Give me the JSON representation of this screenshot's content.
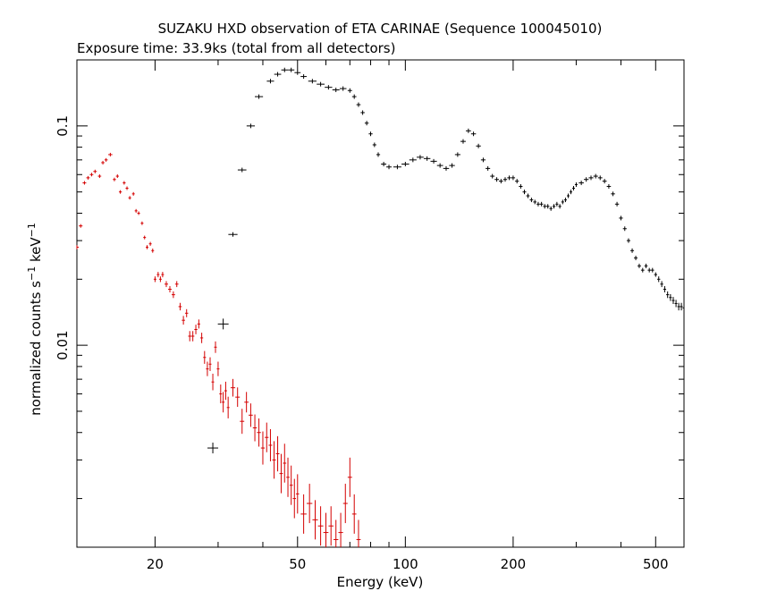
{
  "chart_data": {
    "type": "scatter",
    "title": "SUZAKU HXD observation of ETA CARINAE (Sequence 100045010)",
    "subtitle": "Exposure time: 33.9ks (total from all detectors)",
    "xlabel": "Energy (keV)",
    "ylabel_main": "normalized counts s",
    "ylabel_sup1": "−1",
    "ylabel_mid": " keV",
    "ylabel_sup2": "−1",
    "x_scale": "log",
    "y_scale": "log",
    "xlim": [
      12.1,
      600
    ],
    "ylim": [
      0.0012,
      0.2
    ],
    "x_ticks": [
      {
        "value": 20,
        "label": "20"
      },
      {
        "value": 50,
        "label": "50"
      },
      {
        "value": 100,
        "label": "100"
      },
      {
        "value": 200,
        "label": "200"
      },
      {
        "value": 500,
        "label": "500"
      }
    ],
    "y_ticks": [
      {
        "value": 0.1,
        "label": "0.1"
      },
      {
        "value": 0.01,
        "label": "0.01"
      }
    ],
    "grid": false,
    "series": [
      {
        "color": "#d40000",
        "points": [
          [
            12.1,
            0.028
          ],
          [
            12.4,
            0.035
          ],
          [
            12.7,
            0.055
          ],
          [
            13.0,
            0.058
          ],
          [
            13.3,
            0.06
          ],
          [
            13.6,
            0.062
          ],
          [
            14.0,
            0.059
          ],
          [
            14.3,
            0.068
          ],
          [
            14.6,
            0.07
          ],
          [
            15.0,
            0.074
          ],
          [
            15.4,
            0.057
          ],
          [
            15.7,
            0.059
          ],
          [
            16.0,
            0.05
          ],
          [
            16.4,
            0.055
          ],
          [
            16.7,
            0.052
          ],
          [
            17.0,
            0.047
          ],
          [
            17.4,
            0.049
          ],
          [
            17.7,
            0.041
          ],
          [
            18.0,
            0.04
          ],
          [
            18.4,
            0.036
          ],
          [
            18.7,
            0.031
          ],
          [
            19.0,
            0.028
          ],
          [
            19.4,
            0.029
          ],
          [
            19.7,
            0.027
          ],
          [
            20.0,
            0.02
          ],
          [
            20.4,
            0.021
          ],
          [
            20.7,
            0.02
          ],
          [
            21.0,
            0.021
          ],
          [
            21.5,
            0.019
          ],
          [
            22.0,
            0.018
          ],
          [
            22.5,
            0.017
          ],
          [
            23.0,
            0.019
          ],
          [
            23.5,
            0.015
          ],
          [
            24.0,
            0.013
          ],
          [
            24.5,
            0.014
          ],
          [
            25.0,
            0.011
          ],
          [
            25.5,
            0.011
          ],
          [
            26.0,
            0.0118
          ],
          [
            26.5,
            0.0125
          ],
          [
            27.0,
            0.0108
          ],
          [
            27.5,
            0.0088
          ],
          [
            28.0,
            0.0078
          ],
          [
            28.5,
            0.0082
          ],
          [
            29.0,
            0.0068
          ],
          [
            29.5,
            0.0098
          ],
          [
            30.0,
            0.0078
          ],
          [
            30.5,
            0.006
          ],
          [
            31.0,
            0.0055
          ],
          [
            31.5,
            0.0062
          ],
          [
            32.0,
            0.0052
          ],
          [
            33.0,
            0.0064
          ],
          [
            34.0,
            0.0058
          ],
          [
            35.0,
            0.0045
          ],
          [
            36.0,
            0.0055
          ],
          [
            37.0,
            0.0048
          ],
          [
            38.0,
            0.0042
          ],
          [
            39.0,
            0.004
          ],
          [
            40.0,
            0.0034
          ],
          [
            41.0,
            0.0038
          ],
          [
            42.0,
            0.0035
          ],
          [
            43.0,
            0.003
          ],
          [
            44.0,
            0.0032
          ],
          [
            45.0,
            0.0026
          ],
          [
            46.0,
            0.0029
          ],
          [
            47.0,
            0.0025
          ],
          [
            48.0,
            0.0023
          ],
          [
            49.0,
            0.002
          ],
          [
            50.0,
            0.0021
          ],
          [
            52.0,
            0.0017
          ],
          [
            54.0,
            0.0019
          ],
          [
            56.0,
            0.0016
          ],
          [
            58.0,
            0.0015
          ],
          [
            60.0,
            0.0014
          ],
          [
            62.0,
            0.0015
          ],
          [
            64.0,
            0.0013
          ],
          [
            66.0,
            0.0014
          ],
          [
            68.0,
            0.0019
          ],
          [
            70.0,
            0.0025
          ],
          [
            72.0,
            0.0017
          ],
          [
            74.0,
            0.0013
          ]
        ]
      },
      {
        "color": "#000000",
        "points": [
          [
            29,
            0.0034
          ],
          [
            31,
            0.0125
          ],
          [
            33,
            0.032
          ],
          [
            35,
            0.063
          ],
          [
            37,
            0.1
          ],
          [
            39,
            0.136
          ],
          [
            42,
            0.16
          ],
          [
            44,
            0.172
          ],
          [
            46,
            0.18
          ],
          [
            48,
            0.18
          ],
          [
            50,
            0.175
          ],
          [
            52,
            0.168
          ],
          [
            55,
            0.16
          ],
          [
            58,
            0.155
          ],
          [
            61,
            0.15
          ],
          [
            64,
            0.146
          ],
          [
            67,
            0.148
          ],
          [
            70,
            0.145
          ],
          [
            72,
            0.136
          ],
          [
            74,
            0.125
          ],
          [
            76,
            0.115
          ],
          [
            78,
            0.103
          ],
          [
            80,
            0.092
          ],
          [
            82,
            0.082
          ],
          [
            84,
            0.074
          ],
          [
            87,
            0.067
          ],
          [
            90,
            0.065
          ],
          [
            95,
            0.065
          ],
          [
            100,
            0.067
          ],
          [
            105,
            0.07
          ],
          [
            110,
            0.072
          ],
          [
            115,
            0.071
          ],
          [
            120,
            0.069
          ],
          [
            125,
            0.066
          ],
          [
            130,
            0.064
          ],
          [
            135,
            0.066
          ],
          [
            140,
            0.074
          ],
          [
            145,
            0.085
          ],
          [
            150,
            0.095
          ],
          [
            155,
            0.092
          ],
          [
            160,
            0.081
          ],
          [
            165,
            0.07
          ],
          [
            170,
            0.064
          ],
          [
            175,
            0.059
          ],
          [
            180,
            0.057
          ],
          [
            185,
            0.056
          ],
          [
            190,
            0.057
          ],
          [
            195,
            0.058
          ],
          [
            200,
            0.058
          ],
          [
            205,
            0.056
          ],
          [
            210,
            0.053
          ],
          [
            215,
            0.05
          ],
          [
            220,
            0.048
          ],
          [
            225,
            0.046
          ],
          [
            230,
            0.045
          ],
          [
            235,
            0.044
          ],
          [
            240,
            0.044
          ],
          [
            245,
            0.043
          ],
          [
            250,
            0.043
          ],
          [
            255,
            0.042
          ],
          [
            260,
            0.043
          ],
          [
            265,
            0.044
          ],
          [
            270,
            0.043
          ],
          [
            275,
            0.045
          ],
          [
            280,
            0.046
          ],
          [
            285,
            0.048
          ],
          [
            290,
            0.05
          ],
          [
            295,
            0.052
          ],
          [
            300,
            0.054
          ],
          [
            310,
            0.055
          ],
          [
            320,
            0.057
          ],
          [
            330,
            0.058
          ],
          [
            340,
            0.059
          ],
          [
            350,
            0.058
          ],
          [
            360,
            0.056
          ],
          [
            370,
            0.053
          ],
          [
            380,
            0.049
          ],
          [
            390,
            0.044
          ],
          [
            400,
            0.038
          ],
          [
            410,
            0.034
          ],
          [
            420,
            0.03
          ],
          [
            430,
            0.027
          ],
          [
            440,
            0.025
          ],
          [
            450,
            0.023
          ],
          [
            460,
            0.022
          ],
          [
            470,
            0.023
          ],
          [
            480,
            0.022
          ],
          [
            490,
            0.022
          ],
          [
            500,
            0.021
          ],
          [
            510,
            0.02
          ],
          [
            520,
            0.019
          ],
          [
            530,
            0.018
          ],
          [
            540,
            0.017
          ],
          [
            550,
            0.0165
          ],
          [
            560,
            0.016
          ],
          [
            570,
            0.0155
          ],
          [
            580,
            0.015
          ],
          [
            590,
            0.015
          ],
          [
            600,
            0.0148
          ]
        ]
      }
    ]
  }
}
